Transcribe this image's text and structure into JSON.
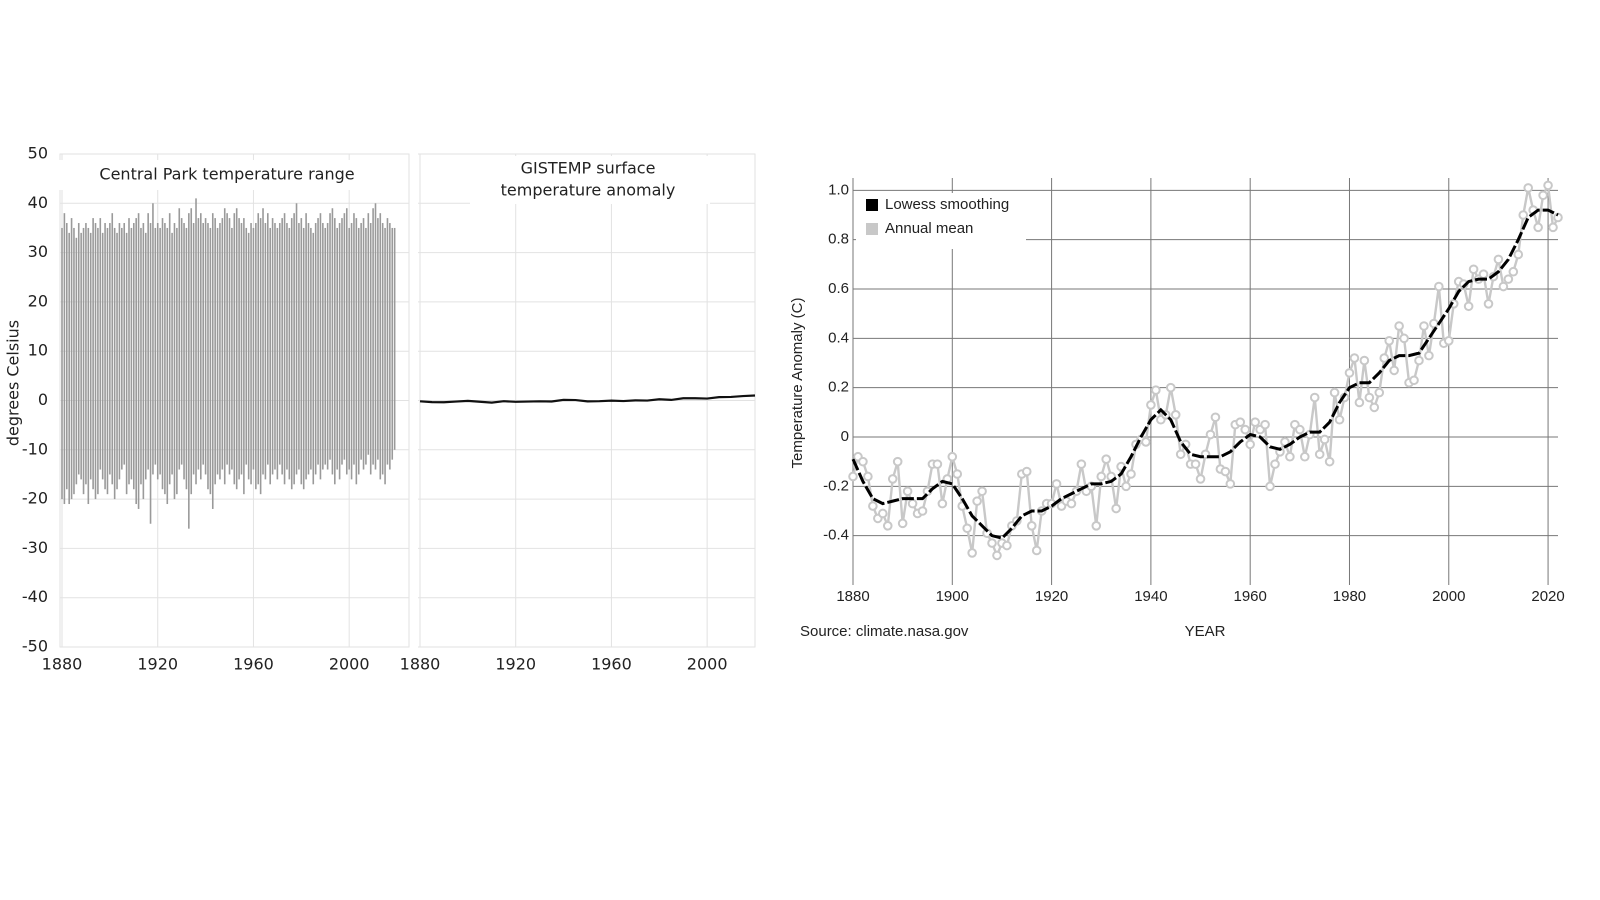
{
  "chart_data": [
    {
      "type": "range",
      "title": "Central Park temperature range",
      "y_label": "degrees Celsius",
      "color": "#9a9a9a",
      "grid": true,
      "xlim": [
        1880,
        2025
      ],
      "xticks": [
        1880,
        1920,
        1960,
        2000
      ],
      "ylim": [
        -50,
        50
      ],
      "yticks": [
        -50,
        -40,
        -30,
        -20,
        -10,
        0,
        10,
        20,
        30,
        40,
        50
      ],
      "x": [
        1880,
        1881,
        1882,
        1883,
        1884,
        1885,
        1886,
        1887,
        1888,
        1889,
        1890,
        1891,
        1892,
        1893,
        1894,
        1895,
        1896,
        1897,
        1898,
        1899,
        1900,
        1901,
        1902,
        1903,
        1904,
        1905,
        1906,
        1907,
        1908,
        1909,
        1910,
        1911,
        1912,
        1913,
        1914,
        1915,
        1916,
        1917,
        1918,
        1919,
        1920,
        1921,
        1922,
        1923,
        1924,
        1925,
        1926,
        1927,
        1928,
        1929,
        1930,
        1931,
        1932,
        1933,
        1934,
        1935,
        1936,
        1937,
        1938,
        1939,
        1940,
        1941,
        1942,
        1943,
        1944,
        1945,
        1946,
        1947,
        1948,
        1949,
        1950,
        1951,
        1952,
        1953,
        1954,
        1955,
        1956,
        1957,
        1958,
        1959,
        1960,
        1961,
        1962,
        1963,
        1964,
        1965,
        1966,
        1967,
        1968,
        1969,
        1970,
        1971,
        1972,
        1973,
        1974,
        1975,
        1976,
        1977,
        1978,
        1979,
        1980,
        1981,
        1982,
        1983,
        1984,
        1985,
        1986,
        1987,
        1988,
        1989,
        1990,
        1991,
        1992,
        1993,
        1994,
        1995,
        1996,
        1997,
        1998,
        1999,
        2000,
        2001,
        2002,
        2003,
        2004,
        2005,
        2006,
        2007,
        2008,
        2009,
        2010,
        2011,
        2012,
        2013,
        2014,
        2015,
        2016,
        2017,
        2018,
        2019
      ],
      "high": [
        35,
        38,
        36,
        34,
        37,
        35,
        33,
        36,
        34,
        35,
        36,
        35,
        34,
        37,
        36,
        35,
        37,
        34,
        36,
        35,
        36,
        38,
        35,
        34,
        36,
        35,
        36,
        34,
        37,
        35,
        36,
        37,
        38,
        35,
        36,
        34,
        38,
        36,
        40,
        35,
        36,
        35,
        37,
        36,
        35,
        38,
        34,
        36,
        35,
        39,
        37,
        36,
        35,
        38,
        39,
        36,
        41,
        37,
        38,
        36,
        37,
        36,
        35,
        38,
        37,
        35,
        36,
        37,
        39,
        38,
        37,
        35,
        38,
        39,
        37,
        36,
        37,
        35,
        34,
        36,
        35,
        36,
        38,
        37,
        39,
        36,
        38,
        35,
        37,
        36,
        35,
        36,
        37,
        38,
        36,
        35,
        37,
        38,
        40,
        36,
        37,
        35,
        38,
        36,
        35,
        34,
        36,
        37,
        38,
        36,
        35,
        36,
        38,
        39,
        37,
        35,
        36,
        37,
        38,
        39,
        35,
        36,
        38,
        37,
        35,
        36,
        37,
        35,
        38,
        36,
        39,
        40,
        37,
        38,
        36,
        35,
        37,
        36,
        35,
        35
      ],
      "low": [
        -20,
        -21,
        -18,
        -21,
        -20,
        -19,
        -17,
        -15,
        -16,
        -19,
        -17,
        -21,
        -16,
        -18,
        -20,
        -19,
        -14,
        -16,
        -18,
        -19,
        -15,
        -17,
        -20,
        -18,
        -16,
        -14,
        -13,
        -19,
        -17,
        -16,
        -18,
        -21,
        -22,
        -17,
        -20,
        -16,
        -14,
        -25,
        -15,
        -13,
        -16,
        -15,
        -18,
        -19,
        -21,
        -17,
        -15,
        -20,
        -19,
        -14,
        -13,
        -16,
        -18,
        -26,
        -19,
        -15,
        -17,
        -14,
        -16,
        -13,
        -15,
        -18,
        -19,
        -22,
        -17,
        -15,
        -16,
        -14,
        -17,
        -13,
        -15,
        -14,
        -17,
        -18,
        -16,
        -15,
        -19,
        -13,
        -16,
        -17,
        -14,
        -18,
        -17,
        -19,
        -15,
        -16,
        -13,
        -17,
        -15,
        -14,
        -16,
        -13,
        -15,
        -17,
        -14,
        -16,
        -18,
        -17,
        -15,
        -14,
        -17,
        -18,
        -16,
        -15,
        -14,
        -17,
        -15,
        -13,
        -16,
        -14,
        -13,
        -14,
        -12,
        -15,
        -17,
        -14,
        -16,
        -13,
        -12,
        -15,
        -14,
        -16,
        -13,
        -17,
        -15,
        -12,
        -14,
        -13,
        -11,
        -15,
        -13,
        -14,
        -12,
        -16,
        -15,
        -17,
        -13,
        -14,
        -12,
        -10
      ]
    },
    {
      "type": "line",
      "title": [
        "GISTEMP surface",
        "temperature anomaly"
      ],
      "color": "#111111",
      "grid": true,
      "xlim": [
        1880,
        2020
      ],
      "xticks": [
        1880,
        1920,
        1960,
        2000
      ],
      "ylim": [
        -50,
        50
      ],
      "yticks": [
        -50,
        -40,
        -30,
        -20,
        -10,
        0,
        10,
        20,
        30,
        40,
        50
      ],
      "x": [
        1880,
        1885,
        1890,
        1895,
        1900,
        1905,
        1910,
        1915,
        1920,
        1925,
        1930,
        1935,
        1940,
        1945,
        1950,
        1955,
        1960,
        1965,
        1970,
        1975,
        1980,
        1985,
        1990,
        1995,
        2000,
        2005,
        2010,
        2015,
        2020
      ],
      "values": [
        -0.16,
        -0.33,
        -0.35,
        -0.22,
        -0.08,
        -0.26,
        -0.43,
        -0.14,
        -0.27,
        -0.22,
        -0.16,
        -0.2,
        0.13,
        0.09,
        -0.17,
        -0.14,
        -0.03,
        -0.11,
        0.03,
        -0.01,
        0.26,
        0.12,
        0.45,
        0.45,
        0.39,
        0.68,
        0.72,
        0.9,
        1.02
      ]
    },
    {
      "type": "line",
      "y_label": "Temperature Anomaly (C)",
      "x_label": "YEAR",
      "source": "Source: climate.nasa.gov",
      "grid": true,
      "legend": "upper left",
      "xlim": [
        1880,
        2022
      ],
      "xticks": [
        1880,
        1900,
        1920,
        1940,
        1960,
        1980,
        2000,
        2020
      ],
      "ylim": [
        -0.6,
        1.05
      ],
      "yticks": [
        -0.4,
        -0.2,
        0,
        0.2,
        0.4,
        0.6,
        0.8,
        {
          "value": 1,
          "label": "1.0"
        }
      ],
      "series": [
        {
          "name": "Lowess smoothing",
          "color": "#000000",
          "x": [
            1880,
            1882,
            1884,
            1886,
            1888,
            1890,
            1892,
            1894,
            1896,
            1898,
            1900,
            1902,
            1904,
            1906,
            1908,
            1910,
            1912,
            1914,
            1916,
            1918,
            1920,
            1922,
            1924,
            1926,
            1928,
            1930,
            1932,
            1934,
            1936,
            1938,
            1940,
            1942,
            1944,
            1946,
            1948,
            1950,
            1952,
            1954,
            1956,
            1958,
            1960,
            1962,
            1964,
            1966,
            1968,
            1970,
            1972,
            1974,
            1976,
            1978,
            1980,
            1982,
            1984,
            1986,
            1988,
            1990,
            1992,
            1994,
            1996,
            1998,
            2000,
            2002,
            2004,
            2006,
            2008,
            2010,
            2012,
            2014,
            2016,
            2018,
            2020,
            2022
          ],
          "values": [
            -0.09,
            -0.18,
            -0.25,
            -0.27,
            -0.26,
            -0.25,
            -0.25,
            -0.25,
            -0.21,
            -0.18,
            -0.19,
            -0.25,
            -0.32,
            -0.36,
            -0.4,
            -0.41,
            -0.37,
            -0.32,
            -0.3,
            -0.3,
            -0.28,
            -0.25,
            -0.23,
            -0.21,
            -0.19,
            -0.19,
            -0.18,
            -0.15,
            -0.08,
            0,
            0.07,
            0.11,
            0.07,
            -0.02,
            -0.07,
            -0.08,
            -0.08,
            -0.08,
            -0.06,
            -0.02,
            0.01,
            0,
            -0.04,
            -0.05,
            -0.03,
            0,
            0.02,
            0.02,
            0.06,
            0.14,
            0.2,
            0.22,
            0.22,
            0.26,
            0.31,
            0.33,
            0.33,
            0.34,
            0.4,
            0.46,
            0.52,
            0.59,
            0.63,
            0.64,
            0.64,
            0.67,
            0.72,
            0.8,
            0.89,
            0.92,
            0.92,
            0.9
          ]
        },
        {
          "name": "Annual mean",
          "color": "#c8c8c8",
          "x": [
            1880,
            1881,
            1882,
            1883,
            1884,
            1885,
            1886,
            1887,
            1888,
            1889,
            1890,
            1891,
            1892,
            1893,
            1894,
            1895,
            1896,
            1897,
            1898,
            1899,
            1900,
            1901,
            1902,
            1903,
            1904,
            1905,
            1906,
            1907,
            1908,
            1909,
            1910,
            1911,
            1912,
            1913,
            1914,
            1915,
            1916,
            1917,
            1918,
            1919,
            1920,
            1921,
            1922,
            1923,
            1924,
            1925,
            1926,
            1927,
            1928,
            1929,
            1930,
            1931,
            1932,
            1933,
            1934,
            1935,
            1936,
            1937,
            1938,
            1939,
            1940,
            1941,
            1942,
            1943,
            1944,
            1945,
            1946,
            1947,
            1948,
            1949,
            1950,
            1951,
            1952,
            1953,
            1954,
            1955,
            1956,
            1957,
            1958,
            1959,
            1960,
            1961,
            1962,
            1963,
            1964,
            1965,
            1966,
            1967,
            1968,
            1969,
            1970,
            1971,
            1972,
            1973,
            1974,
            1975,
            1976,
            1977,
            1978,
            1979,
            1980,
            1981,
            1982,
            1983,
            1984,
            1985,
            1986,
            1987,
            1988,
            1989,
            1990,
            1991,
            1992,
            1993,
            1994,
            1995,
            1996,
            1997,
            1998,
            1999,
            2000,
            2001,
            2002,
            2003,
            2004,
            2005,
            2006,
            2007,
            2008,
            2009,
            2010,
            2011,
            2012,
            2013,
            2014,
            2015,
            2016,
            2017,
            2018,
            2019,
            2020,
            2021,
            2022
          ],
          "values": [
            -0.16,
            -0.08,
            -0.1,
            -0.16,
            -0.28,
            -0.33,
            -0.31,
            -0.36,
            -0.17,
            -0.1,
            -0.35,
            -0.22,
            -0.27,
            -0.31,
            -0.3,
            -0.22,
            -0.11,
            -0.11,
            -0.27,
            -0.17,
            -0.08,
            -0.15,
            -0.28,
            -0.37,
            -0.47,
            -0.26,
            -0.22,
            -0.39,
            -0.43,
            -0.48,
            -0.43,
            -0.44,
            -0.36,
            -0.34,
            -0.15,
            -0.14,
            -0.36,
            -0.46,
            -0.3,
            -0.27,
            -0.27,
            -0.19,
            -0.28,
            -0.26,
            -0.27,
            -0.22,
            -0.11,
            -0.22,
            -0.2,
            -0.36,
            -0.16,
            -0.09,
            -0.16,
            -0.29,
            -0.12,
            -0.2,
            -0.15,
            -0.03,
            -0.01,
            -0.02,
            0.13,
            0.19,
            0.07,
            0.09,
            0.2,
            0.09,
            -0.07,
            -0.03,
            -0.11,
            -0.11,
            -0.17,
            -0.07,
            0.01,
            0.08,
            -0.13,
            -0.14,
            -0.19,
            0.05,
            0.06,
            0.03,
            -0.03,
            0.06,
            0.03,
            0.05,
            -0.2,
            -0.11,
            -0.06,
            -0.02,
            -0.08,
            0.05,
            0.03,
            -0.08,
            0.01,
            0.16,
            -0.07,
            -0.01,
            -0.1,
            0.18,
            0.07,
            0.16,
            0.26,
            0.32,
            0.14,
            0.31,
            0.16,
            0.12,
            0.18,
            0.32,
            0.39,
            0.27,
            0.45,
            0.4,
            0.22,
            0.23,
            0.31,
            0.45,
            0.33,
            0.46,
            0.61,
            0.38,
            0.39,
            0.54,
            0.63,
            0.62,
            0.53,
            0.68,
            0.64,
            0.66,
            0.54,
            0.65,
            0.72,
            0.61,
            0.64,
            0.67,
            0.74,
            0.9,
            1.01,
            0.92,
            0.85,
            0.98,
            1.02,
            0.85,
            0.89
          ]
        }
      ]
    }
  ]
}
